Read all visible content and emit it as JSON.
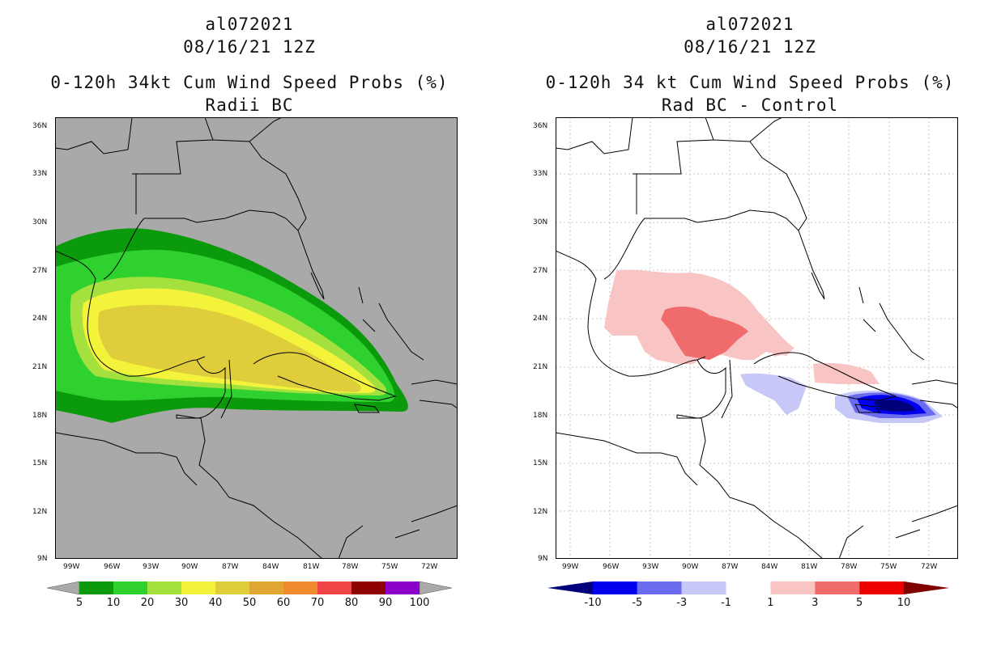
{
  "left": {
    "title_line1": "al072021",
    "title_line2": "08/16/21 12Z",
    "title_line3": "0-120h 34kt Cum Wind Speed Probs (%)",
    "title_line4": "Radii BC",
    "background_color": "#a9a9a9",
    "colorbar": {
      "labels": [
        "5",
        "10",
        "20",
        "30",
        "40",
        "50",
        "60",
        "70",
        "80",
        "90",
        "100"
      ],
      "colors": [
        "#0b9a0b",
        "#2fd12f",
        "#a4e03e",
        "#f3f33b",
        "#e0cd3c",
        "#e0a632",
        "#f08a2e",
        "#f04545",
        "#8f0000",
        "#8b00c8"
      ]
    }
  },
  "right": {
    "title_line1": "al072021",
    "title_line2": "08/16/21 12Z",
    "title_line3": "0-120h 34 kt Cum Wind Speed Probs (%)",
    "title_line4": "Rad BC - Control",
    "background_color": "#ffffff",
    "colorbar": {
      "labels": [
        "-10",
        "-5",
        "-3",
        "-1",
        "1",
        "3",
        "5",
        "10"
      ],
      "colors": [
        "#00007a",
        "#0000ee",
        "#6b6bf0",
        "#c7c7f8",
        "#ffffff",
        "#f8c4c4",
        "#f06b6b",
        "#ee0000",
        "#800000"
      ]
    }
  },
  "lat_labels": [
    "36N",
    "33N",
    "30N",
    "27N",
    "24N",
    "21N",
    "18N",
    "15N",
    "12N",
    "9N"
  ],
  "lon_labels": [
    "99W",
    "96W",
    "93W",
    "90W",
    "87W",
    "84W",
    "81W",
    "78W",
    "75W",
    "72W"
  ]
}
